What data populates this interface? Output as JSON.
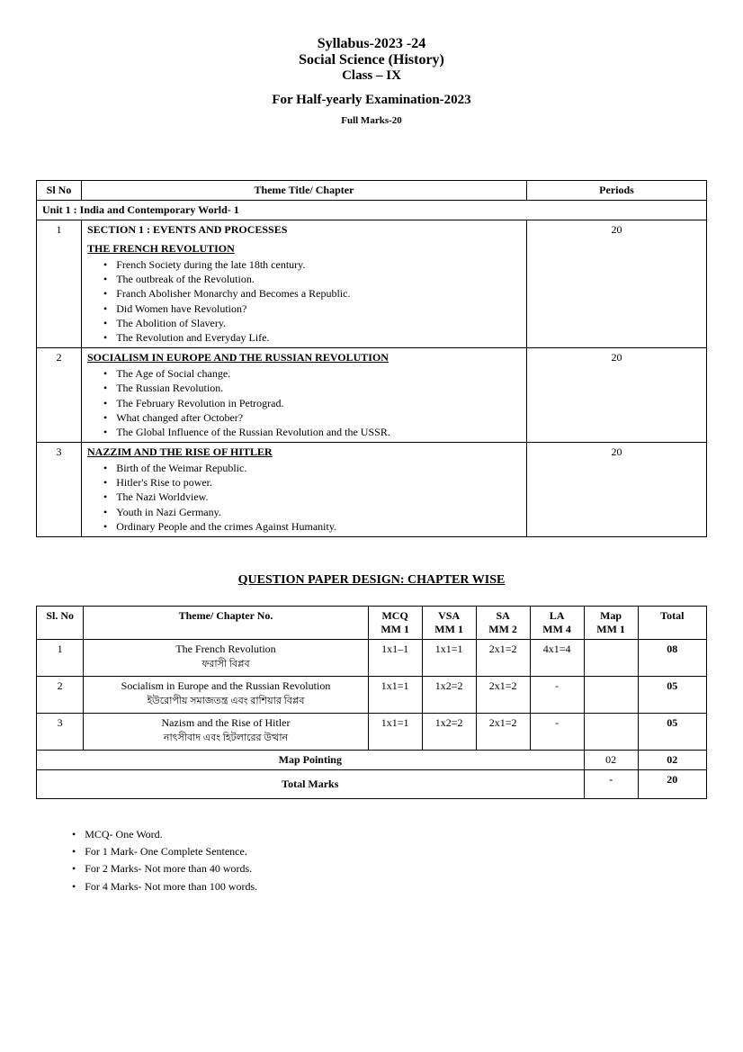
{
  "header": {
    "line1": "Syllabus-2023 -24",
    "line2": "Social Science (History)",
    "line3": "Class – IX",
    "line4": "For Half-yearly Examination-2023",
    "fullmarks": "Full Marks-20"
  },
  "syllabus_table": {
    "headers": {
      "slno": "Sl No",
      "theme": "Theme Title/ Chapter",
      "periods": "Periods"
    },
    "unit": "Unit 1 : India and Contemporary World- 1",
    "rows": [
      {
        "sl": "1",
        "section": "SECTION 1 : EVENTS AND PROCESSES",
        "topic": "THE FRENCH REVOLUTION",
        "bullets": [
          "French Society during the late 18th century.",
          "The outbreak of the Revolution.",
          "Franch Abolisher Monarchy and Becomes a Republic.",
          "Did Women have Revolution?",
          "The Abolition of Slavery.",
          "The Revolution and Everyday Life."
        ],
        "periods": "20"
      },
      {
        "sl": "2",
        "section": "",
        "topic": "SOCIALISM IN EUROPE AND THE RUSSIAN REVOLUTION",
        "bullets": [
          "The Age of Social change.",
          "The Russian Revolution.",
          "The February Revolution in Petrograd.",
          "What changed after October?",
          "The Global Influence of the Russian Revolution and the USSR."
        ],
        "periods": "20"
      },
      {
        "sl": "3",
        "section": "",
        "topic": "NAZZIM AND THE RISE OF HITLER",
        "bullets": [
          "Birth of the Weimar Republic.",
          "Hitler's Rise to power.",
          "The Nazi Worldview.",
          "Youth in Nazi Germany.",
          "Ordinary People and the crimes Against Humanity."
        ],
        "periods": "20"
      }
    ]
  },
  "qpd": {
    "title": "QUESTION PAPER DESIGN: CHAPTER WISE",
    "headers": {
      "sl": "Sl. No",
      "theme": "Theme/ Chapter No.",
      "mcq": "MCQ",
      "mcq2": "MM 1",
      "vsa": "VSA",
      "vsa2": "MM 1",
      "sa": "SA",
      "sa2": "MM 2",
      "la": "LA",
      "la2": "MM 4",
      "map": "Map",
      "map2": "MM 1",
      "total": "Total"
    },
    "rows": [
      {
        "sl": "1",
        "theme": "The French Revolution",
        "theme_sub": "ফরাসী বিপ্লব",
        "mcq": "1x1–1",
        "vsa": "1x1=1",
        "sa": "2x1=2",
        "la": "4x1=4",
        "map": "",
        "total": "08"
      },
      {
        "sl": "2",
        "theme": "Socialism in Europe and the Russian Revolution",
        "theme_sub": "ইউরোপীয় সমাজতন্ত্র এবং রাশিয়ার বিপ্লব",
        "mcq": "1x1=1",
        "vsa": "1x2=2",
        "sa": "2x1=2",
        "la": "-",
        "map": "",
        "total": "05"
      },
      {
        "sl": "3",
        "theme": "Nazism and the Rise of Hitler",
        "theme_sub": "নাৎসীবাদ এবং হিটলারের উত্থান",
        "mcq": "1x1=1",
        "vsa": "1x2=2",
        "sa": "2x1=2",
        "la": "-",
        "map": "",
        "total": "05"
      }
    ],
    "map_row": {
      "label": "Map Pointing",
      "map": "02",
      "total": "02"
    },
    "total_row": {
      "label": "Total Marks",
      "map": "-",
      "total": "20"
    }
  },
  "notes": [
    "MCQ- One Word.",
    "For 1 Mark- One Complete Sentence.",
    "For 2 Marks- Not more than 40 words.",
    "For 4 Marks- Not more than 100 words."
  ]
}
